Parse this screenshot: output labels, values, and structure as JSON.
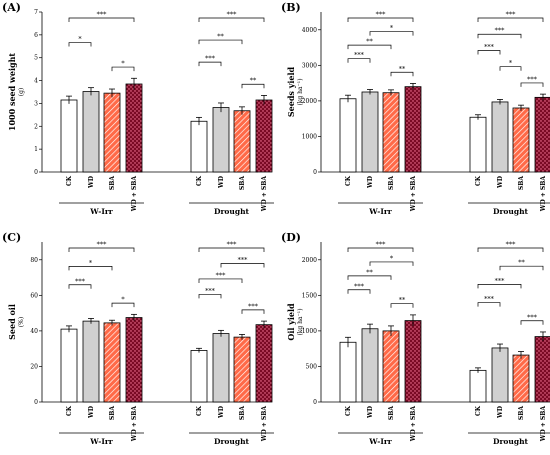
{
  "colors": {
    "CK": "#ffffff",
    "WD": "#d0d0d0",
    "SBA": "#ff5a3c",
    "WD + SBA": "#7a0a24"
  },
  "chart_data": [
    {
      "type": "bar",
      "panel_label": "(A)",
      "ylabel": "1000 seed weight",
      "yunit": "(g)",
      "ylim": [
        0,
        7
      ],
      "yticks": [
        0,
        1,
        2,
        3,
        4,
        5,
        6,
        7
      ],
      "categories": [
        "CK",
        "WD",
        "SBA",
        "WD + SBA"
      ],
      "groups": [
        {
          "name": "W-Irr",
          "values": [
            3.15,
            3.52,
            3.45,
            3.85
          ],
          "errors": [
            0.17,
            0.17,
            0.18,
            0.25
          ],
          "brackets": [
            {
              "a": 0,
              "b": 3,
              "label": "***"
            },
            {
              "a": 0,
              "b": 1,
              "label": "*"
            },
            {
              "a": 2,
              "b": 3,
              "label": "*"
            }
          ]
        },
        {
          "name": "Drought",
          "values": [
            2.22,
            2.82,
            2.68,
            3.15
          ],
          "errors": [
            0.17,
            0.2,
            0.17,
            0.2
          ],
          "brackets": [
            {
              "a": 0,
              "b": 3,
              "label": "***"
            },
            {
              "a": 0,
              "b": 2,
              "label": "**"
            },
            {
              "a": 0,
              "b": 1,
              "label": "***"
            },
            {
              "a": 2,
              "b": 3,
              "label": "**"
            }
          ]
        }
      ]
    },
    {
      "type": "bar",
      "panel_label": "(B)",
      "ylabel": "Seeds yield",
      "yunit": "(kg ha⁻¹)",
      "ylim": [
        0,
        4500
      ],
      "yticks": [
        0,
        1000,
        2000,
        3000,
        4000
      ],
      "categories": [
        "CK",
        "WD",
        "SBA",
        "WD + SBA"
      ],
      "groups": [
        {
          "name": "W-Irr",
          "values": [
            2060,
            2250,
            2230,
            2400
          ],
          "errors": [
            100,
            70,
            80,
            90
          ],
          "brackets": [
            {
              "a": 0,
              "b": 3,
              "label": "***"
            },
            {
              "a": 1,
              "b": 3,
              "label": "*"
            },
            {
              "a": 0,
              "b": 2,
              "label": "**"
            },
            {
              "a": 0,
              "b": 1,
              "label": "***"
            },
            {
              "a": 2,
              "b": 3,
              "label": "**"
            }
          ]
        },
        {
          "name": "Drought",
          "values": [
            1540,
            1970,
            1800,
            2100
          ],
          "errors": [
            70,
            70,
            80,
            90
          ],
          "brackets": [
            {
              "a": 0,
              "b": 3,
              "label": "***"
            },
            {
              "a": 0,
              "b": 2,
              "label": "***"
            },
            {
              "a": 0,
              "b": 1,
              "label": "***"
            },
            {
              "a": 1,
              "b": 2,
              "label": "*"
            },
            {
              "a": 2,
              "b": 3,
              "label": "***"
            }
          ]
        }
      ]
    },
    {
      "type": "bar",
      "panel_label": "(C)",
      "ylabel": "Seed oil",
      "yunit": "(%)",
      "ylim": [
        0,
        90
      ],
      "yticks": [
        0,
        20,
        40,
        60,
        80
      ],
      "categories": [
        "CK",
        "WD",
        "SBA",
        "WD + SBA"
      ],
      "groups": [
        {
          "name": "W-Irr",
          "values": [
            41,
            45.5,
            44.5,
            47.5
          ],
          "errors": [
            1.8,
            1.5,
            1.5,
            1.8
          ],
          "brackets": [
            {
              "a": 0,
              "b": 3,
              "label": "***"
            },
            {
              "a": 0,
              "b": 2,
              "label": "*"
            },
            {
              "a": 0,
              "b": 1,
              "label": "***"
            },
            {
              "a": 2,
              "b": 3,
              "label": "*"
            }
          ]
        },
        {
          "name": "Drought",
          "values": [
            29,
            38.5,
            36.5,
            43.5
          ],
          "errors": [
            1.2,
            1.8,
            1.5,
            2.0
          ],
          "brackets": [
            {
              "a": 0,
              "b": 3,
              "label": "***"
            },
            {
              "a": 1,
              "b": 3,
              "label": "***"
            },
            {
              "a": 0,
              "b": 2,
              "label": "***"
            },
            {
              "a": 0,
              "b": 1,
              "label": "***"
            },
            {
              "a": 2,
              "b": 3,
              "label": "***"
            }
          ]
        }
      ]
    },
    {
      "type": "bar",
      "panel_label": "(D)",
      "ylabel": "Oil yield",
      "yunit": "(kg ha⁻¹)",
      "ylim": [
        0,
        2250
      ],
      "yticks": [
        0,
        500,
        1000,
        1500,
        2000
      ],
      "categories": [
        "CK",
        "WD",
        "SBA",
        "WD + SBA"
      ],
      "groups": [
        {
          "name": "W-Irr",
          "values": [
            840,
            1030,
            1000,
            1145
          ],
          "errors": [
            70,
            65,
            70,
            80
          ],
          "brackets": [
            {
              "a": 0,
              "b": 3,
              "label": "***"
            },
            {
              "a": 1,
              "b": 3,
              "label": "*"
            },
            {
              "a": 0,
              "b": 2,
              "label": "**"
            },
            {
              "a": 0,
              "b": 1,
              "label": "***"
            },
            {
              "a": 2,
              "b": 3,
              "label": "**"
            }
          ]
        },
        {
          "name": "Drought",
          "values": [
            445,
            760,
            660,
            920
          ],
          "errors": [
            35,
            55,
            50,
            65
          ],
          "brackets": [
            {
              "a": 0,
              "b": 3,
              "label": "***"
            },
            {
              "a": 1,
              "b": 3,
              "label": "**"
            },
            {
              "a": 0,
              "b": 2,
              "label": "***"
            },
            {
              "a": 0,
              "b": 1,
              "label": "***"
            },
            {
              "a": 2,
              "b": 3,
              "label": "***"
            }
          ]
        }
      ]
    }
  ]
}
